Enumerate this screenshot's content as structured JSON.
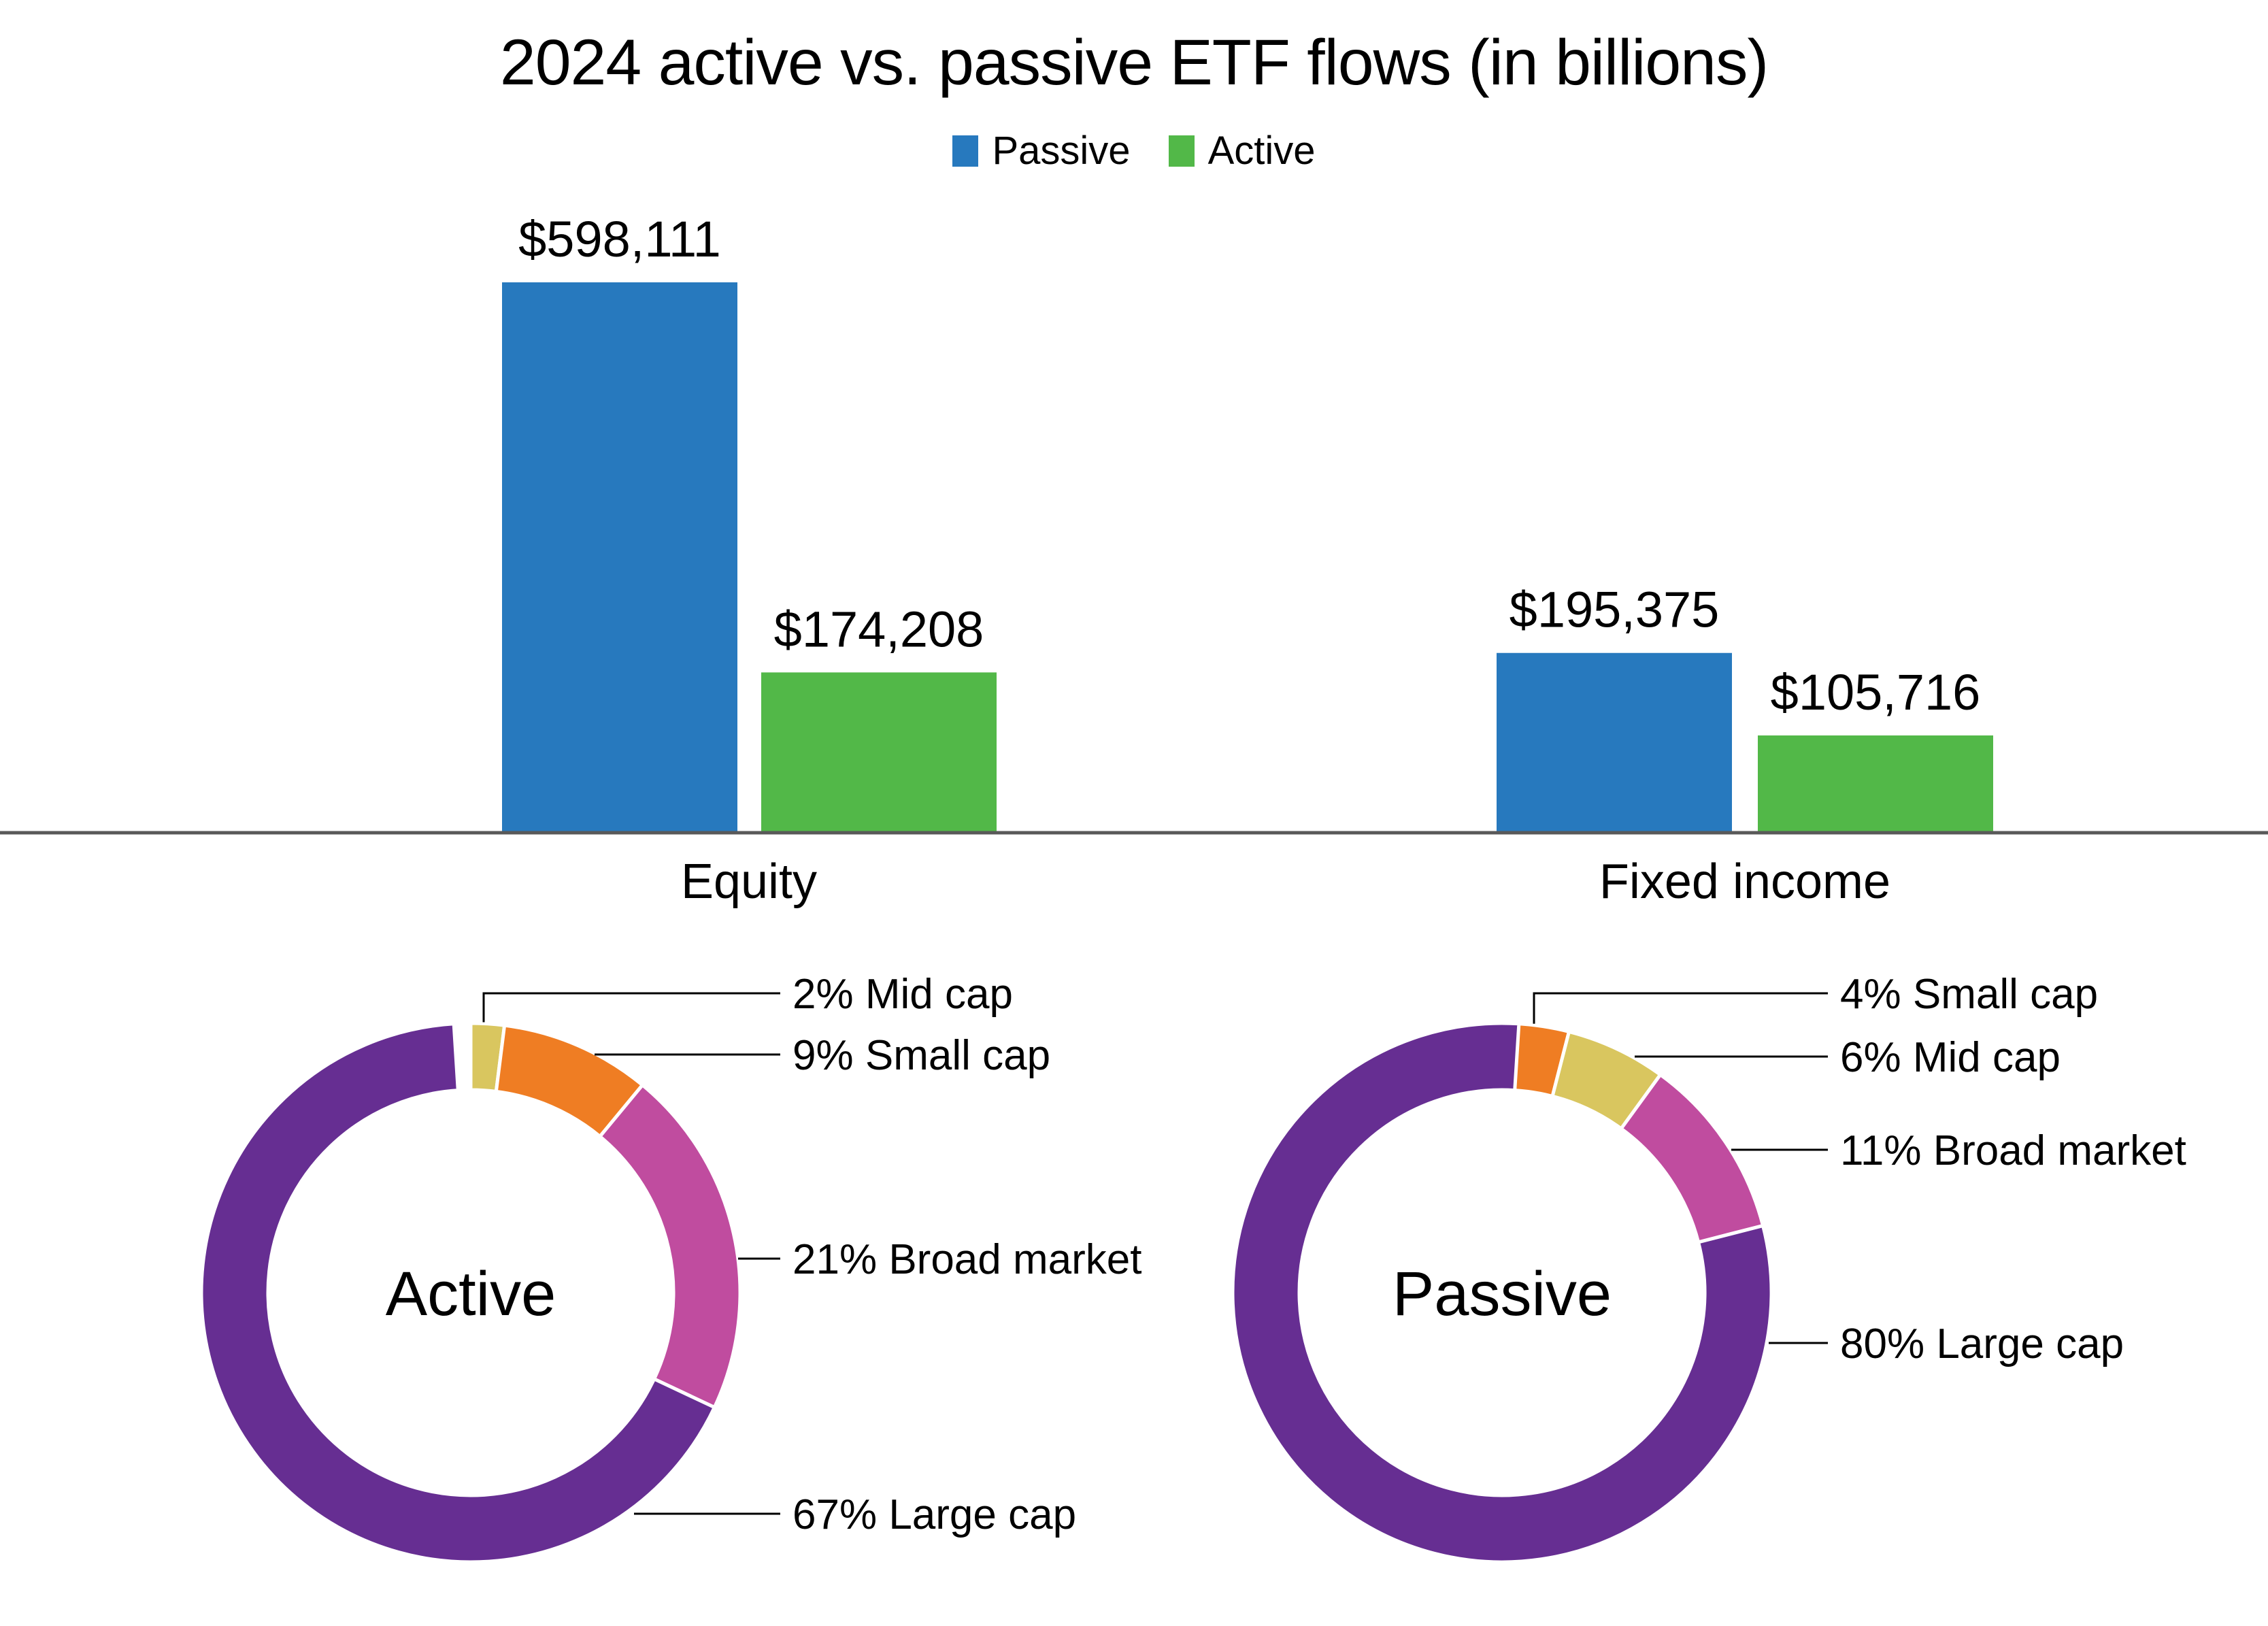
{
  "title": "2024 active vs. passive ETF flows (in billions)",
  "legend": [
    {
      "label": "Passive",
      "color": "#2779BE"
    },
    {
      "label": "Active",
      "color": "#52B848"
    }
  ],
  "colors": {
    "passive_blue": "#2779BE",
    "active_green": "#52B848",
    "large_cap_purple": "#662E92",
    "broad_market_pink": "#C04C9F",
    "small_cap_orange": "#EF7D23",
    "mid_cap_yellow": "#D9C65F",
    "axis_line": "#595959",
    "leader_line": "#000000"
  },
  "chart_data": [
    {
      "type": "bar",
      "title": "2024 active vs. passive ETF flows (in billions)",
      "categories": [
        "Equity",
        "Fixed income"
      ],
      "series": [
        {
          "name": "Passive",
          "color": "#2779BE",
          "values": [
            598111,
            195375
          ]
        },
        {
          "name": "Active",
          "color": "#52B848",
          "values": [
            174208,
            105716
          ]
        }
      ],
      "value_labels": [
        [
          "$598,111",
          "$195,375"
        ],
        [
          "$174,208",
          "$105,716"
        ]
      ],
      "legend_position": "top",
      "gridlines": false,
      "y_axis": "hidden",
      "ylim": [
        0,
        650000
      ]
    },
    {
      "type": "donut",
      "center_label": "Active",
      "slices": [
        {
          "name": "Mid cap",
          "pct": 2,
          "label": "2% Mid cap",
          "color": "#D9C65F"
        },
        {
          "name": "Small cap",
          "pct": 9,
          "label": "9% Small cap",
          "color": "#EF7D23"
        },
        {
          "name": "Broad market",
          "pct": 21,
          "label": "21% Broad market",
          "color": "#C04C9F"
        },
        {
          "name": "Large cap",
          "pct": 67,
          "label": "67% Large cap",
          "color": "#662E92"
        }
      ]
    },
    {
      "type": "donut",
      "center_label": "Passive",
      "slices": [
        {
          "name": "Small cap",
          "pct": 4,
          "label": "4% Small cap",
          "color": "#EF7D23"
        },
        {
          "name": "Mid cap",
          "pct": 6,
          "label": "6% Mid cap",
          "color": "#D9C65F"
        },
        {
          "name": "Broad market",
          "pct": 11,
          "label": "11% Broad market",
          "color": "#C04C9F"
        },
        {
          "name": "Large cap",
          "pct": 80,
          "label": "80% Large cap",
          "color": "#662E92"
        }
      ]
    }
  ]
}
